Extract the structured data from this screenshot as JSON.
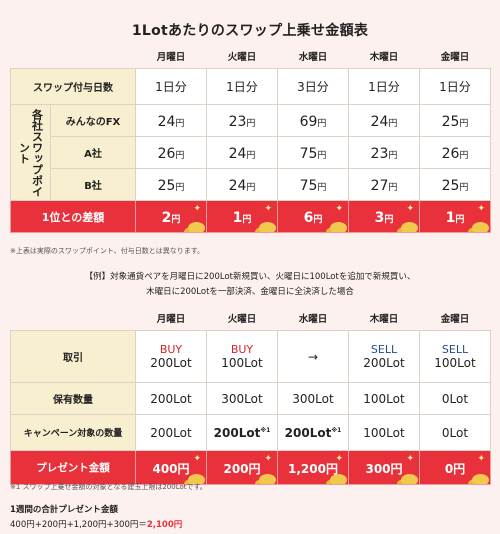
{
  "title": "1Lotあたりのスワップ上乗せ金額表",
  "days": [
    "月曜日",
    "火曜日",
    "水曜日",
    "木曜日",
    "金曜日"
  ],
  "t1": {
    "days_row_label": "スワップ付与日数",
    "days_values": [
      "1日分",
      "1日分",
      "3日分",
      "1日分",
      "1日分"
    ],
    "group_label": "各社スワップポイント",
    "rows": [
      {
        "name": "みんなのFX",
        "values": [
          "24",
          "23",
          "69",
          "24",
          "25"
        ]
      },
      {
        "name": "A社",
        "values": [
          "26",
          "24",
          "75",
          "23",
          "26"
        ]
      },
      {
        "name": "B社",
        "values": [
          "25",
          "24",
          "75",
          "27",
          "25"
        ]
      }
    ],
    "diff_label": "1位との差額",
    "diff_values": [
      "2",
      "1",
      "6",
      "3",
      "1"
    ],
    "unit": "円"
  },
  "note1": "※上表は実際のスワップポイント、付与日数とは異なります。",
  "example_line1": "【例】対象通貨ペアを月曜日に200Lot新規買い、火曜日に100Lotを追加で新規買い、",
  "example_line2": "木曜日に200Lotを一部決済、金曜日に全決済した場合",
  "t2": {
    "trade_label": "取引",
    "trade_types": [
      "BUY",
      "BUY",
      "→",
      "SELL",
      "SELL"
    ],
    "trade_lots": [
      "200Lot",
      "100Lot",
      "",
      "200Lot",
      "100Lot"
    ],
    "hold_label": "保有数量",
    "hold_values": [
      "200Lot",
      "300Lot",
      "300Lot",
      "100Lot",
      "0Lot"
    ],
    "camp_label": "キャンペーン対象の数量",
    "camp_values": [
      "200Lot",
      "200Lot",
      "200Lot",
      "100Lot",
      "0Lot"
    ],
    "camp_mark": "※1",
    "present_label": "プレゼント金額",
    "present_values": [
      "400円",
      "200円",
      "1,200円",
      "300円",
      "0円"
    ]
  },
  "note2": "※1 スワップ上乗せ金額の対象となる建玉上限は200Lotです。",
  "total_label": "1週間の合計プレゼント金額",
  "total_formula": "400円+200円+1,200円+300円＝",
  "total_value": "2,100円",
  "colors": {
    "red": "#e8313a",
    "label_bg": "#f7efcf",
    "buy": "#d9232b",
    "sell": "#1f4e8c",
    "bg": "#fcf1ef"
  }
}
